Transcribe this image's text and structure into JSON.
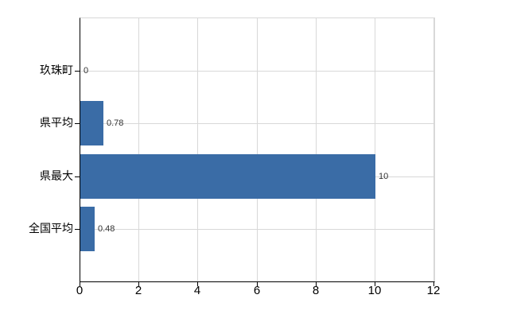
{
  "chart_data": {
    "type": "bar",
    "orientation": "horizontal",
    "title": "",
    "xlabel": "",
    "ylabel": "",
    "categories": [
      "玖珠町",
      "県平均",
      "県最大",
      "全国平均"
    ],
    "values": [
      0,
      0.78,
      10,
      0.48
    ],
    "value_labels": [
      "0",
      "0.78",
      "10",
      "0.48"
    ],
    "xlim": [
      0,
      12
    ],
    "x_ticks": [
      "0",
      "2",
      "4",
      "6",
      "8",
      "10",
      "12"
    ],
    "x_tick_values": [
      0,
      2,
      4,
      6,
      8,
      10,
      12
    ],
    "grid": true,
    "legend": false,
    "bar_color": "#3a6ca6",
    "grid_color": "#d8d8d8",
    "axis_color": "#000000",
    "text_color": "#000000",
    "value_label_color": "#333333",
    "background": "#ffffff"
  }
}
